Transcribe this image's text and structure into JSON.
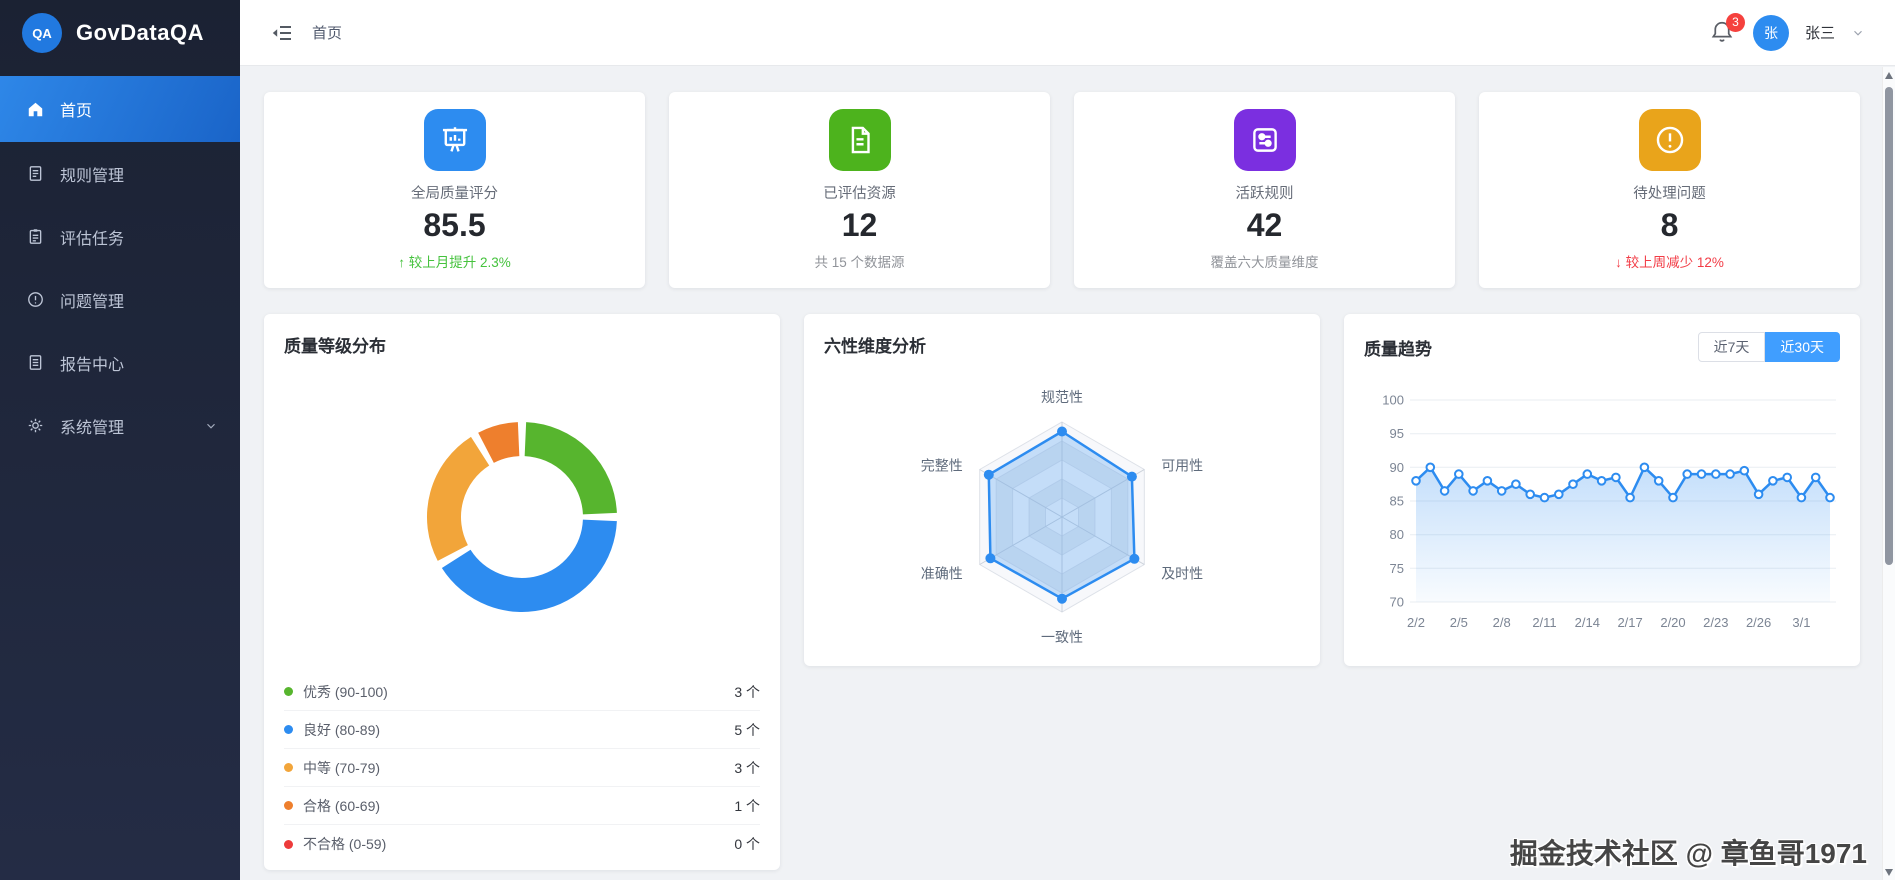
{
  "app": {
    "logo_text": "QA",
    "name": "GovDataQA"
  },
  "sidebar": {
    "items": [
      {
        "label": "首页",
        "icon": "home-icon",
        "active": true
      },
      {
        "label": "规则管理",
        "icon": "rules-document-icon",
        "active": false
      },
      {
        "label": "评估任务",
        "icon": "tasks-clipboard-icon",
        "active": false
      },
      {
        "label": "问题管理",
        "icon": "issues-warning-icon",
        "active": false
      },
      {
        "label": "报告中心",
        "icon": "reports-document-icon",
        "active": false
      },
      {
        "label": "系统管理",
        "icon": "gear-icon",
        "active": false,
        "has_submenu": true
      }
    ]
  },
  "header": {
    "breadcrumb": "首页",
    "notification_badge": "3",
    "avatar_text": "张",
    "user_name": "张三"
  },
  "stats": [
    {
      "title": "全局质量评分",
      "value": "85.5",
      "note": "↑ 较上月提升 2.3%",
      "note_color": "#45c23d",
      "icon": "presentation-chart-icon",
      "icon_color": "#2d8cf0"
    },
    {
      "title": "已评估资源",
      "value": "12",
      "note": "共 15 个数据源",
      "note_color": "#909399",
      "icon": "document-icon",
      "icon_color": "#4db31d"
    },
    {
      "title": "活跃规则",
      "value": "42",
      "note": "覆盖六大质量维度",
      "note_color": "#909399",
      "icon": "sliders-icon",
      "icon_color": "#7b2fe0"
    },
    {
      "title": "待处理问题",
      "value": "8",
      "note": "↓ 较上周减少 12%",
      "note_color": "#f23c46",
      "icon": "warning-icon",
      "icon_color": "#e9a41b"
    }
  ],
  "chart_data": [
    {
      "type": "pie",
      "title": "质量等级分布",
      "donut": true,
      "labels": [
        "优秀 (90-100)",
        "良好 (80-89)",
        "中等 (70-79)",
        "合格 (60-69)",
        "不合格 (0-59)"
      ],
      "values": [
        3,
        5,
        3,
        1,
        0
      ],
      "counts": [
        "3 个",
        "5 个",
        "3 个",
        "1 个",
        "0 个"
      ],
      "colors": [
        "#57b52e",
        "#2d8cf0",
        "#f2a53a",
        "#ee7f2d",
        "#ed3b3b"
      ],
      "legend_position": "bottom"
    },
    {
      "type": "radar",
      "title": "六性维度分析",
      "axes": [
        "规范性",
        "可用性",
        "及时性",
        "一致性",
        "准确性",
        "完整性"
      ],
      "values": [
        90,
        85,
        88,
        86,
        87,
        89
      ],
      "max": 100,
      "line_color": "#2d8cf0",
      "fill_color": "rgba(45,140,240,0.25)"
    },
    {
      "type": "line",
      "title": "质量趋势",
      "range_buttons": [
        {
          "label": "近7天",
          "active": false
        },
        {
          "label": "近30天",
          "active": true
        }
      ],
      "x_labels": [
        "2/2",
        "2/5",
        "2/8",
        "2/11",
        "2/14",
        "2/17",
        "2/20",
        "2/23",
        "2/26",
        "3/1"
      ],
      "values": [
        88,
        90,
        86.5,
        89,
        86.5,
        88,
        86.5,
        87.5,
        86,
        85.5,
        86,
        87.5,
        89,
        88,
        88.5,
        85.5,
        90,
        88,
        85.5,
        89,
        89,
        89,
        89,
        89.5,
        86,
        88,
        88.5,
        85.5,
        88.5,
        85.5
      ],
      "ylim": [
        70,
        100
      ],
      "yticks": [
        100,
        95,
        90,
        85,
        80,
        75,
        70
      ],
      "line_color": "#2d8cf0",
      "grid": true
    }
  ],
  "watermark": "掘金技术社区 @ 章鱼哥1971"
}
